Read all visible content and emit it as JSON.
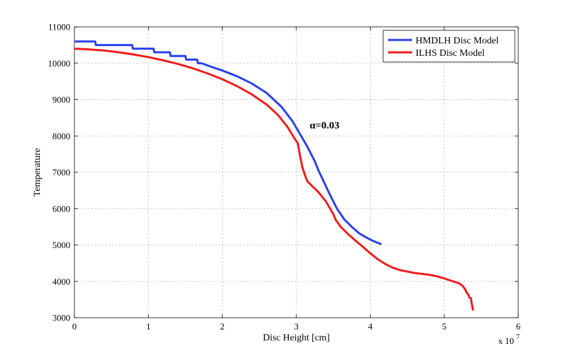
{
  "chart_data": {
    "type": "line",
    "title": "",
    "xlabel": "Disc Height [cm]",
    "ylabel": "Temperature",
    "x_multiplier_label": "x 10",
    "x_multiplier_exponent": "7",
    "xlim": [
      0,
      6
    ],
    "ylim": [
      3000,
      11000
    ],
    "x_ticks": [
      0,
      1,
      2,
      3,
      4,
      5,
      6
    ],
    "x_tick_labels": [
      "0",
      "1",
      "2",
      "3",
      "4",
      "5",
      "6"
    ],
    "y_ticks": [
      3000,
      4000,
      5000,
      6000,
      7000,
      8000,
      9000,
      10000,
      11000
    ],
    "y_tick_labels": [
      "3000",
      "4000",
      "5000",
      "6000",
      "7000",
      "8000",
      "9000",
      "10000",
      "11000"
    ],
    "grid": true,
    "legend_position": "top-right",
    "annotation": {
      "text": "α=0.03",
      "x": 3.18,
      "y": 8200
    },
    "series": [
      {
        "name": "HMDLH Disc Model",
        "color": "#2a3ff0",
        "points": [
          [
            0,
            10600
          ],
          [
            0.28,
            10600
          ],
          [
            0.29,
            10500
          ],
          [
            0.78,
            10500
          ],
          [
            0.79,
            10400
          ],
          [
            1.07,
            10400
          ],
          [
            1.08,
            10300
          ],
          [
            1.29,
            10300
          ],
          [
            1.3,
            10200
          ],
          [
            1.5,
            10200
          ],
          [
            1.51,
            10100
          ],
          [
            1.66,
            10100
          ],
          [
            1.67,
            10000
          ],
          [
            1.72,
            10000
          ],
          [
            1.85,
            9900
          ],
          [
            2.0,
            9800
          ],
          [
            2.2,
            9640
          ],
          [
            2.4,
            9440
          ],
          [
            2.6,
            9180
          ],
          [
            2.8,
            8800
          ],
          [
            2.95,
            8400
          ],
          [
            3.05,
            8050
          ],
          [
            3.15,
            7700
          ],
          [
            3.25,
            7300
          ],
          [
            3.3,
            7050
          ],
          [
            3.38,
            6700
          ],
          [
            3.45,
            6400
          ],
          [
            3.55,
            6000
          ],
          [
            3.65,
            5700
          ],
          [
            3.75,
            5500
          ],
          [
            3.85,
            5320
          ],
          [
            3.95,
            5200
          ],
          [
            4.05,
            5100
          ],
          [
            4.15,
            5020
          ]
        ]
      },
      {
        "name": "ILHS Disc Model",
        "color": "#ee1c1c",
        "points": [
          [
            0,
            10400
          ],
          [
            0.2,
            10380
          ],
          [
            0.4,
            10350
          ],
          [
            0.6,
            10300
          ],
          [
            0.8,
            10240
          ],
          [
            1.0,
            10170
          ],
          [
            1.2,
            10080
          ],
          [
            1.4,
            9980
          ],
          [
            1.6,
            9860
          ],
          [
            1.8,
            9720
          ],
          [
            2.0,
            9560
          ],
          [
            2.2,
            9370
          ],
          [
            2.4,
            9140
          ],
          [
            2.6,
            8860
          ],
          [
            2.75,
            8580
          ],
          [
            2.88,
            8250
          ],
          [
            2.97,
            7950
          ],
          [
            3.02,
            7800
          ],
          [
            3.05,
            7450
          ],
          [
            3.08,
            7150
          ],
          [
            3.12,
            6900
          ],
          [
            3.15,
            6750
          ],
          [
            3.2,
            6650
          ],
          [
            3.25,
            6550
          ],
          [
            3.3,
            6450
          ],
          [
            3.4,
            6200
          ],
          [
            3.5,
            5850
          ],
          [
            3.53,
            5700
          ],
          [
            3.6,
            5500
          ],
          [
            3.7,
            5300
          ],
          [
            3.8,
            5120
          ],
          [
            3.9,
            4950
          ],
          [
            4.0,
            4770
          ],
          [
            4.1,
            4610
          ],
          [
            4.2,
            4480
          ],
          [
            4.3,
            4380
          ],
          [
            4.4,
            4310
          ],
          [
            4.6,
            4230
          ],
          [
            4.8,
            4180
          ],
          [
            4.9,
            4140
          ],
          [
            5.0,
            4080
          ],
          [
            5.1,
            4010
          ],
          [
            5.2,
            3950
          ],
          [
            5.25,
            3870
          ],
          [
            5.28,
            3790
          ],
          [
            5.3,
            3700
          ],
          [
            5.33,
            3620
          ],
          [
            5.34,
            3550
          ],
          [
            5.36,
            3540
          ],
          [
            5.37,
            3400
          ],
          [
            5.39,
            3200
          ]
        ]
      }
    ]
  }
}
